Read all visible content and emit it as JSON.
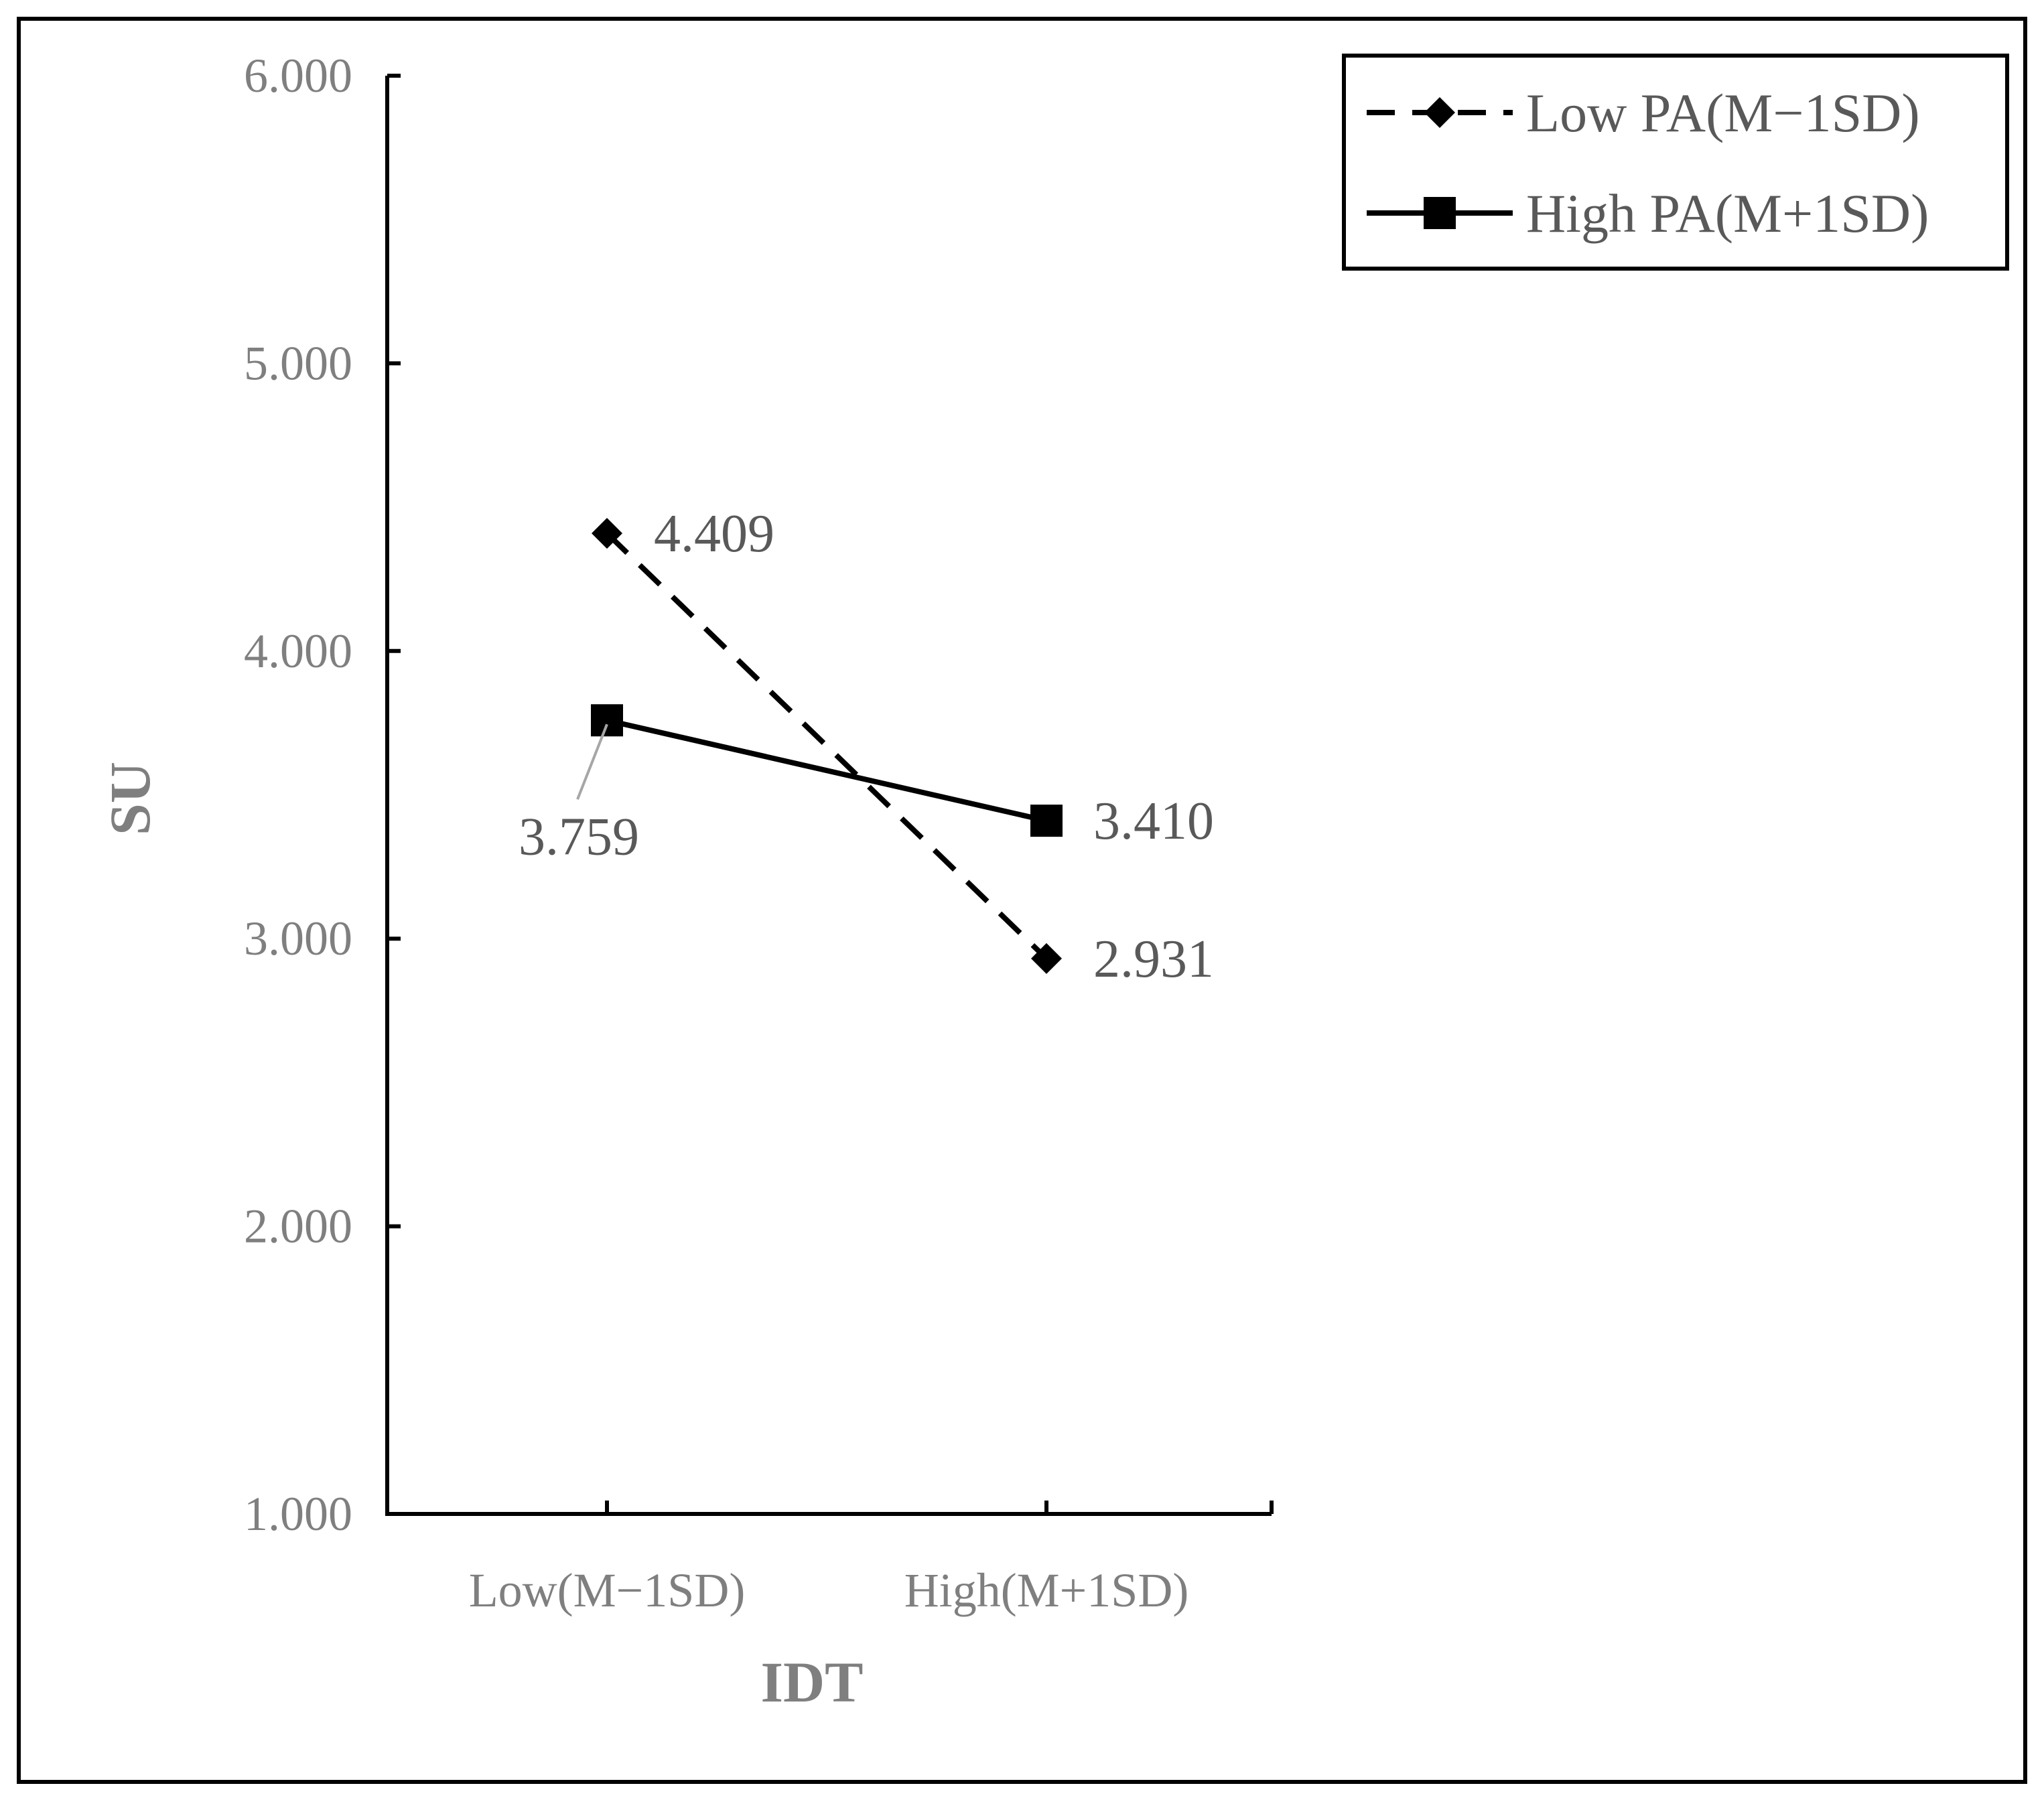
{
  "chart_data": {
    "type": "line",
    "xlabel": "IDT",
    "ylabel": "SU",
    "categories": [
      "Low(M−1SD)",
      "High(M+1SD)"
    ],
    "yticks": [
      "1.000",
      "2.000",
      "3.000",
      "4.000",
      "5.000",
      "6.000"
    ],
    "ylim": [
      1,
      6
    ],
    "grid": false,
    "legend_position": "top-right",
    "series": [
      {
        "name": "Low PA(M−1SD)",
        "values": [
          4.409,
          2.931
        ],
        "labels": [
          "4.409",
          "2.931"
        ],
        "line_style": "dashed",
        "marker": "diamond",
        "color": "#000000"
      },
      {
        "name": "High PA(M+1SD)",
        "values": [
          3.759,
          3.41
        ],
        "labels": [
          "3.759",
          "3.410"
        ],
        "line_style": "solid",
        "marker": "square",
        "color": "#000000"
      }
    ]
  }
}
